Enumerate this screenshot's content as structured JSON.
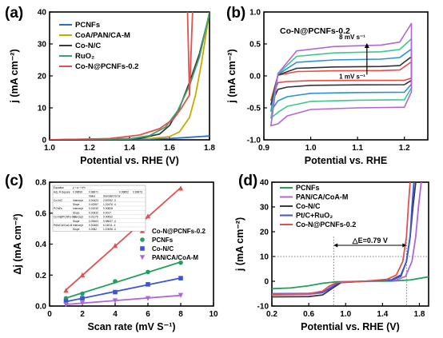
{
  "colors": {
    "pcnf": "#2f6cc4",
    "coa": "#c9a800",
    "conc": "#3a3a3a",
    "ruo2": "#3aa36f",
    "cn02": "#e0524f",
    "purple": "#b066d8",
    "green": "#22a05a",
    "blue": "#3a55d8",
    "cv_black": "#333333",
    "cv_blue": "#2b8fd8",
    "cv_green": "#3ec98a",
    "cv_red": "#e84a4a"
  },
  "chart_data": [
    {
      "type": "line",
      "panel": "(a)",
      "xlabel": "Potential vs. RHE (V)",
      "ylabel": "j (mA cm⁻²)",
      "xlim": [
        1.0,
        1.8
      ],
      "ylim": [
        0,
        40
      ],
      "xticks": [
        "1.0",
        "1.2",
        "1.4",
        "1.6",
        "1.8"
      ],
      "yticks": [
        "0",
        "10",
        "20",
        "30",
        "40"
      ],
      "legend_position": "top-left",
      "series": [
        {
          "name": "PCNFs",
          "color_key": "pcnf",
          "points": [
            [
              1.0,
              0
            ],
            [
              1.3,
              0.05
            ],
            [
              1.5,
              0.2
            ],
            [
              1.6,
              0.4
            ],
            [
              1.7,
              0.8
            ],
            [
              1.8,
              1.2
            ]
          ]
        },
        {
          "name": "CoA/PAN/CA-M",
          "color_key": "coa",
          "points": [
            [
              1.0,
              0
            ],
            [
              1.5,
              0.4
            ],
            [
              1.6,
              1.0
            ],
            [
              1.65,
              2.5
            ],
            [
              1.7,
              7
            ],
            [
              1.73,
              14
            ],
            [
              1.76,
              24
            ],
            [
              1.79,
              36
            ],
            [
              1.8,
              40
            ]
          ]
        },
        {
          "name": "Co-N/C",
          "color_key": "conc",
          "points": [
            [
              1.0,
              0
            ],
            [
              1.45,
              0.4
            ],
            [
              1.55,
              1.8
            ],
            [
              1.6,
              4.5
            ],
            [
              1.65,
              10
            ],
            [
              1.7,
              18
            ],
            [
              1.75,
              27
            ],
            [
              1.79,
              37
            ],
            [
              1.8,
              40
            ]
          ]
        },
        {
          "name": "RuO₂",
          "color_key": "ruo2",
          "points": [
            [
              1.0,
              0
            ],
            [
              1.4,
              0.3
            ],
            [
              1.5,
              1.3
            ],
            [
              1.58,
              4
            ],
            [
              1.64,
              9
            ],
            [
              1.7,
              17
            ],
            [
              1.75,
              26
            ],
            [
              1.79,
              37
            ],
            [
              1.8,
              40
            ]
          ]
        },
        {
          "name": "Co-N@PCNFs-0.2",
          "color_key": "cn02",
          "points": [
            [
              1.0,
              0
            ],
            [
              1.3,
              0.4
            ],
            [
              1.45,
              1.5
            ],
            [
              1.55,
              3.5
            ],
            [
              1.62,
              6.5
            ],
            [
              1.66,
              10
            ],
            [
              1.7,
              14
            ],
            [
              1.715,
              40
            ]
          ]
        }
      ],
      "extra_lines": [
        {
          "color_key": "cn02",
          "points": [
            [
              1.69,
              40
            ],
            [
              1.7,
              14
            ]
          ]
        }
      ]
    },
    {
      "type": "line",
      "panel": "(b)",
      "title": "Co-N@PCNFs-0.2",
      "xlabel": "Potential vs. RHE",
      "ylabel": "j (mA cm⁻²)",
      "xlim": [
        0.9,
        1.25
      ],
      "ylim": [
        -1.0,
        1.0
      ],
      "xticks": [
        "0.9",
        "1.0",
        "1.1",
        "1.2"
      ],
      "yticks": [
        "-1.0",
        "-0.5",
        "0.0",
        "0.5",
        "1.0"
      ],
      "annotations": [
        "8 mV s⁻¹",
        "1 mV s⁻¹"
      ],
      "cv_loops": [
        {
          "scan_rate": 1,
          "color_key": "cv_red",
          "top": 0.08,
          "bottom": -0.07,
          "end_high": 0.22,
          "start_low": -0.38
        },
        {
          "scan_rate": 2,
          "color_key": "cv_black",
          "top": 0.14,
          "bottom": -0.14,
          "end_high": 0.3,
          "start_low": -0.45
        },
        {
          "scan_rate": 4,
          "color_key": "cv_blue",
          "top": 0.25,
          "bottom": -0.26,
          "end_high": 0.42,
          "start_low": -0.55
        },
        {
          "scan_rate": 6,
          "color_key": "cv_green",
          "top": 0.36,
          "bottom": -0.38,
          "end_high": 0.58,
          "start_low": -0.66
        },
        {
          "scan_rate": 8,
          "color_key": "purple",
          "top": 0.46,
          "bottom": -0.5,
          "end_high": 0.82,
          "start_low": -0.78
        }
      ]
    },
    {
      "type": "scatter",
      "panel": "(c)",
      "xlabel": "Scan rate (mV S⁻¹)",
      "ylabel": "Δj (mA cm⁻²)",
      "xlim": [
        0,
        10
      ],
      "ylim": [
        0,
        0.8
      ],
      "xticks": [
        "0",
        "2",
        "4",
        "6",
        "8",
        "10"
      ],
      "yticks": [
        "0.0",
        "0.2",
        "0.4",
        "0.6",
        "0.8"
      ],
      "legend_position": "center-right",
      "series": [
        {
          "name": "Co-N@PCNFs-0.2",
          "color_key": "cn02",
          "marker": "triangle-up",
          "x": [
            1,
            2,
            4,
            6,
            8
          ],
          "y": [
            0.1,
            0.2,
            0.39,
            0.58,
            0.76
          ]
        },
        {
          "name": "PCNFs",
          "color_key": "green",
          "marker": "circle",
          "x": [
            1,
            2,
            4,
            6,
            8
          ],
          "y": [
            0.05,
            0.08,
            0.16,
            0.22,
            0.28
          ]
        },
        {
          "name": "Co-N/C",
          "color_key": "blue",
          "marker": "square",
          "x": [
            1,
            2,
            4,
            6,
            8
          ],
          "y": [
            0.03,
            0.05,
            0.09,
            0.14,
            0.18
          ]
        },
        {
          "name": "PAN/CA/CoA-M",
          "color_key": "purple",
          "marker": "triangle-down",
          "x": [
            1,
            2,
            4,
            6,
            8
          ],
          "y": [
            0.01,
            0.02,
            0.035,
            0.05,
            0.07
          ]
        }
      ],
      "inset_table": {
        "header": [
          "Equation",
          "y = a + b*x",
          "",
          "",
          "",
          ""
        ],
        "rows": [
          [
            "Adj. R-Square",
            "0.99690",
            "0.98971",
            "",
            "0.99852",
            "0.99973"
          ],
          [
            "",
            "",
            "Value",
            "Standard Error",
            "",
            ""
          ],
          [
            "Co-N/C",
            "Intercept",
            "0.00423",
            "2.87092 -3",
            "",
            ""
          ],
          [
            "",
            "Slope",
            "0.02267",
            "1.22476 -4",
            "",
            ""
          ],
          [
            "PCNFs",
            "Intercept",
            "0.01032",
            "0.00828",
            "",
            ""
          ],
          [
            "",
            "Slope",
            "0.03332",
            "0.0017",
            "",
            ""
          ],
          [
            "Co-N@PCNFs-0.2",
            "Intercept",
            "0.01176",
            "0.00532",
            "",
            ""
          ],
          [
            "",
            "Slope",
            "0.09403",
            "9.98037 -4",
            "",
            ""
          ],
          [
            "PAN/CA/CoA-M",
            "Intercept",
            "0.00483",
            "6.14011 -4",
            "",
            ""
          ],
          [
            "",
            "Slope",
            "0.0082",
            "1.10536 -4",
            "",
            ""
          ]
        ]
      }
    },
    {
      "type": "line",
      "panel": "(d)",
      "xlabel": "Potential vs. RHE (V)",
      "ylabel": "j (mA cm⁻²)",
      "xlim": [
        0.2,
        1.9
      ],
      "ylim": [
        -10,
        40
      ],
      "xticks": [
        "0.2",
        "0.6",
        "1.0",
        "1.4",
        "1.8"
      ],
      "yticks": [
        "-10",
        "0",
        "10",
        "20",
        "30",
        "40"
      ],
      "legend_position": "top-left",
      "annotation": "△E=0.79 V",
      "series": [
        {
          "name": "PCNFs",
          "color_key": "green",
          "points": [
            [
              0.2,
              -3
            ],
            [
              0.4,
              -2.7
            ],
            [
              0.6,
              -1.8
            ],
            [
              0.75,
              -0.8
            ],
            [
              0.9,
              -0.2
            ],
            [
              1.2,
              0
            ],
            [
              1.5,
              0.1
            ],
            [
              1.7,
              0.5
            ],
            [
              1.9,
              1.8
            ]
          ]
        },
        {
          "name": "PAN/CA/CoA-M",
          "color_key": "purple",
          "points": [
            [
              0.2,
              -5.5
            ],
            [
              0.6,
              -5.3
            ],
            [
              0.75,
              -4.6
            ],
            [
              0.85,
              -2
            ],
            [
              0.95,
              -0.3
            ],
            [
              1.2,
              0
            ],
            [
              1.55,
              0.5
            ],
            [
              1.65,
              2
            ],
            [
              1.72,
              8
            ],
            [
              1.76,
              18
            ],
            [
              1.79,
              30
            ],
            [
              1.82,
              40
            ]
          ]
        },
        {
          "name": "Co-N/C",
          "color_key": "conc",
          "points": [
            [
              0.2,
              -6.3
            ],
            [
              0.6,
              -6.2
            ],
            [
              0.75,
              -5.5
            ],
            [
              0.85,
              -3
            ],
            [
              0.95,
              -0.5
            ],
            [
              1.2,
              0
            ],
            [
              1.5,
              0.6
            ],
            [
              1.6,
              2.5
            ],
            [
              1.66,
              8
            ],
            [
              1.7,
              18
            ],
            [
              1.73,
              30
            ],
            [
              1.76,
              40
            ]
          ]
        },
        {
          "name": "Pt/C+RuO₂",
          "color_key": "blue",
          "points": [
            [
              0.2,
              -5
            ],
            [
              0.6,
              -4.9
            ],
            [
              0.75,
              -4.5
            ],
            [
              0.85,
              -2.5
            ],
            [
              0.92,
              -0.6
            ],
            [
              1.2,
              0
            ],
            [
              1.5,
              0.5
            ],
            [
              1.6,
              2
            ],
            [
              1.66,
              8
            ],
            [
              1.7,
              18
            ],
            [
              1.72,
              30
            ],
            [
              1.74,
              40
            ]
          ]
        },
        {
          "name": "Co-N@PCNFs-0.2",
          "color_key": "cn02",
          "points": [
            [
              0.2,
              -5.2
            ],
            [
              0.6,
              -5
            ],
            [
              0.75,
              -4
            ],
            [
              0.82,
              -2
            ],
            [
              0.9,
              -0.5
            ],
            [
              1.2,
              0
            ],
            [
              1.45,
              0.8
            ],
            [
              1.55,
              2.5
            ],
            [
              1.62,
              8
            ],
            [
              1.66,
              18
            ],
            [
              1.68,
              30
            ],
            [
              1.7,
              40
            ]
          ]
        }
      ],
      "reference_lines": {
        "y": 10,
        "x": [
          0.87,
          1.66
        ]
      }
    }
  ],
  "labels": {
    "a": "(a)",
    "b": "(b)",
    "c": "(c)",
    "d": "(d)"
  }
}
